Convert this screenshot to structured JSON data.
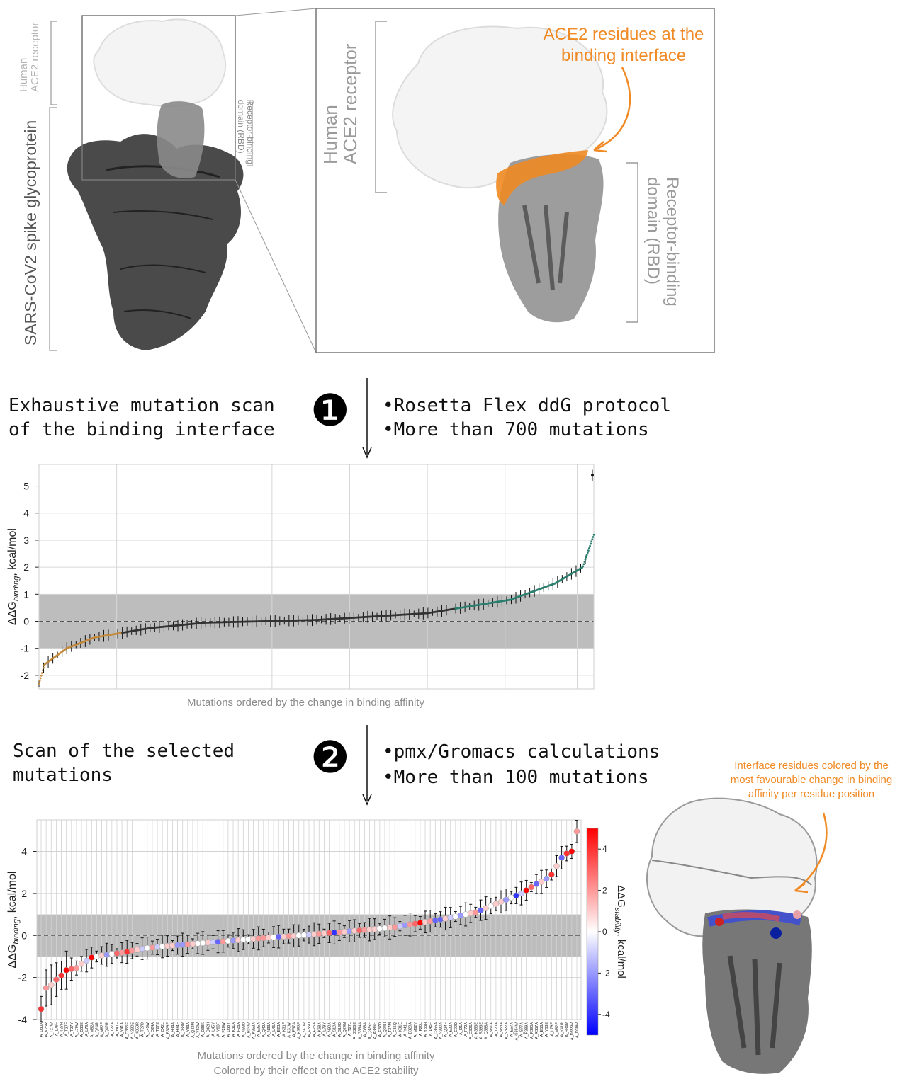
{
  "structure": {
    "left_labels": {
      "ace2": "Human\nACE2 receptor",
      "rbd": "Receptor-binding\ndomain (RBD)",
      "spike": "SARS-CoV2 spike glycoprotein"
    },
    "right_labels": {
      "ace2": "Human\nACE2 receptor",
      "rbd": "Receptor-binding\ndomain (RBD)",
      "interface": "ACE2 residues at the\nbinding interface"
    },
    "colors": {
      "ace2": "#f2f2f2",
      "rbd": "#7a7a7a",
      "spike": "#4a4a4a",
      "interface": "#f08a24"
    }
  },
  "step1": {
    "number": "❶",
    "title": "Exhaustive mutation scan\nof the binding interface",
    "bullets": [
      "Rosetta Flex ddG protocol",
      "More than 700 mutations"
    ]
  },
  "step2": {
    "number": "❷",
    "title": "Scan of the selected\nmutations",
    "bullets": [
      "pmx/Gromacs calculations",
      "More than 100 mutations"
    ]
  },
  "right_annotation": "Interface residues colored by the\nmost favourable change in binding\naffinity per residue position",
  "chart_data": [
    {
      "type": "scatter",
      "ylabel_main": "ΔΔG",
      "ylabel_sub": "binding",
      "ylabel_unit": ", kcal/mol",
      "xlabel": "Mutations ordered by the change in binding affinity",
      "ylim": [
        -2.5,
        5.8
      ],
      "yticks": [
        -2,
        -1,
        0,
        1,
        2,
        3,
        4,
        5
      ],
      "band": [
        -1,
        1
      ],
      "grid": true,
      "n_points": 720,
      "curve_knots": [
        [
          0,
          -2.3
        ],
        [
          0.01,
          -1.6
        ],
        [
          0.05,
          -1.0
        ],
        [
          0.1,
          -0.6
        ],
        [
          0.2,
          -0.25
        ],
        [
          0.3,
          -0.05
        ],
        [
          0.5,
          0.05
        ],
        [
          0.7,
          0.3
        ],
        [
          0.85,
          0.8
        ],
        [
          0.93,
          1.4
        ],
        [
          0.98,
          2.0
        ],
        [
          1.0,
          3.2
        ]
      ],
      "outlier": 5.4
    },
    {
      "type": "scatter",
      "ylabel_main": "ΔΔG",
      "ylabel_sub": "binding",
      "ylabel_unit": ", kcal/mol",
      "xlabel": "Mutations ordered by the change in binding affinity",
      "xlabel2": "Colored by their effect on the ACE2 stability",
      "ylim": [
        -4,
        5.5
      ],
      "yticks": [
        -4,
        -2,
        0,
        2,
        4
      ],
      "band": [
        -1,
        1
      ],
      "grid": true,
      "colorbar": {
        "label_main": "ΔΔG",
        "label_sub": "stability",
        "label_unit": ", kcal/mol",
        "range": [
          -5,
          5
        ],
        "ticks": [
          -4,
          -2,
          0,
          2,
          4
        ]
      },
      "categories": [
        "A_D30A",
        "A_K26R",
        "A_T27W",
        "A_L79F",
        "A_T27H",
        "A_T27F",
        "A_T27Y",
        "A_L79W",
        "A_D38E",
        "A_L79A",
        "A_M82A",
        "A_Q24R",
        "A_M82F",
        "A_Q42R",
        "A_T27A",
        "A_Y41F",
        "A_Y41A",
        "A_D355E",
        "A_N330E",
        "A_K353R",
        "A_T27D",
        "A_L45W",
        "A_Q24A",
        "A_T27E",
        "A_Q42L",
        "A_E329E",
        "A_H34A",
        "A_H34F",
        "A_D38R",
        "A_Y83A",
        "A_Q42M",
        "A_Y83W",
        "A_D38K",
        "A_Q42H",
        "A_L45Y",
        "A_Y83F",
        "A_F28W",
        "A_D38Y",
        "A_K31A",
        "A_F28A",
        "A_N33D",
        "A_H34W",
        "A_K353A",
        "A_E35A",
        "A_Q42A",
        "A_N33A",
        "A_L45A",
        "A_E23A",
        "A_K31F",
        "A_K31W",
        "A_E37A",
        "A_K353F",
        "A_Y41W",
        "A_E35D",
        "A_E75A",
        "A_K68A",
        "A_L79Y",
        "A_N90A",
        "A_S19A",
        "A_S19D",
        "A_Q24N",
        "A_T27L",
        "A_G326E",
        "A_G354A",
        "A_D38A",
        "A_Q325E",
        "A_A386E",
        "A_E37D",
        "A_Q24H",
        "A_T27M",
        "A_E35Q",
        "A_K31E",
        "A_Y41L",
        "A_E329A",
        "A_M82Y",
        "A_F28L",
        "A_Y83H",
        "A_L45F",
        "A_D355A",
        "A_N330A",
        "A_Q24F",
        "A_E22A",
        "A_E22D",
        "A_I21A",
        "A_F72A",
        "A_G326A",
        "A_K353E",
        "A_R393E",
        "A_Q388A",
        "A_N61A",
        "A_T20A",
        "A_N53A",
        "A_N322A",
        "A_E57A",
        "A_G354W",
        "A_S77A",
        "A_P389A",
        "A_F390A",
        "A_R357A",
        "A_E56A",
        "A_Y83E",
        "A_L79E",
        "A_M82E",
        "A_Y41R",
        "A_H34R",
        "A_D355W",
        "A_D30W"
      ],
      "values": [
        -3.5,
        -2.5,
        -2.35,
        -2.1,
        -1.9,
        -1.65,
        -1.6,
        -1.55,
        -1.35,
        -1.2,
        -1.05,
        -1.0,
        -0.95,
        -0.92,
        -0.88,
        -0.85,
        -0.82,
        -0.78,
        -0.72,
        -0.68,
        -0.63,
        -0.6,
        -0.58,
        -0.55,
        -0.52,
        -0.5,
        -0.48,
        -0.46,
        -0.44,
        -0.42,
        -0.4,
        -0.38,
        -0.36,
        -0.34,
        -0.32,
        -0.3,
        -0.28,
        -0.26,
        -0.24,
        -0.22,
        -0.2,
        -0.18,
        -0.16,
        -0.14,
        -0.12,
        -0.1,
        -0.08,
        -0.06,
        -0.05,
        -0.03,
        -0.02,
        0.0,
        0.02,
        0.04,
        0.06,
        0.08,
        0.1,
        0.12,
        0.14,
        0.16,
        0.18,
        0.2,
        0.22,
        0.24,
        0.26,
        0.28,
        0.3,
        0.32,
        0.35,
        0.38,
        0.4,
        0.44,
        0.48,
        0.52,
        0.56,
        0.6,
        0.64,
        0.68,
        0.72,
        0.76,
        0.8,
        0.85,
        0.9,
        0.95,
        1.0,
        1.05,
        1.1,
        1.2,
        1.3,
        1.4,
        1.5,
        1.6,
        1.7,
        1.8,
        1.9,
        2.0,
        2.15,
        2.3,
        2.45,
        2.55,
        2.7,
        2.9,
        3.3,
        3.7,
        3.9,
        4.0,
        4.95
      ],
      "stability": [
        4,
        2,
        1,
        3,
        4,
        5,
        3,
        2,
        1,
        -1,
        5,
        0,
        1,
        -2,
        0,
        3,
        2,
        4,
        2,
        1,
        -1,
        0,
        2,
        -1,
        0,
        1,
        1,
        -2,
        -2,
        2,
        1,
        0,
        0,
        1,
        -1,
        -3,
        2,
        0,
        -2,
        1,
        0,
        0,
        1,
        2,
        2,
        1,
        0,
        -3,
        1,
        2,
        1,
        0,
        0,
        -1,
        1,
        2,
        1,
        3,
        -4,
        2,
        1,
        -2,
        1,
        3,
        2,
        1,
        1,
        0,
        0,
        1,
        2,
        -1,
        -2,
        2,
        3,
        5,
        1,
        2,
        -3,
        -3,
        1,
        -1,
        0,
        -2,
        0,
        1,
        2,
        -3,
        1,
        0,
        1,
        1,
        -2,
        0,
        -4,
        -1,
        5,
        3,
        -3,
        1,
        -2,
        4,
        1,
        -3,
        4,
        5,
        2
      ]
    }
  ]
}
